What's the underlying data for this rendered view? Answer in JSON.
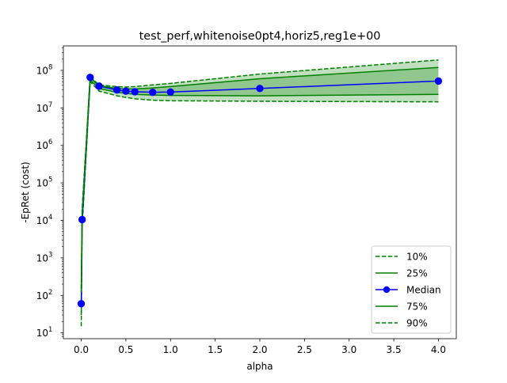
{
  "chart_data": {
    "type": "line",
    "title": "test_perf,whitenoise0pt4,horiz5,reg1e+00",
    "xlabel": "alpha",
    "ylabel": "-EpRet (cost)",
    "yscale": "log",
    "xlim": [
      -0.2,
      4.2
    ],
    "ylim": [
      7,
      450000000
    ],
    "xticks": [
      "0.0",
      "0.5",
      "1.0",
      "1.5",
      "2.0",
      "2.5",
      "3.0",
      "3.5",
      "4.0"
    ],
    "yticks": [
      {
        "base": "10",
        "exp": "1"
      },
      {
        "base": "10",
        "exp": "2"
      },
      {
        "base": "10",
        "exp": "3"
      },
      {
        "base": "10",
        "exp": "4"
      },
      {
        "base": "10",
        "exp": "5"
      },
      {
        "base": "10",
        "exp": "6"
      },
      {
        "base": "10",
        "exp": "7"
      },
      {
        "base": "10",
        "exp": "8"
      }
    ],
    "grid": false,
    "legend_position": "lower-right",
    "x": [
      0,
      0.01,
      0.1,
      0.2,
      0.4,
      0.5,
      0.6,
      0.8,
      1.0,
      2.0,
      4.0
    ],
    "series": [
      {
        "name": "10%",
        "style": "dashed",
        "color": "#008000",
        "values": [
          15,
          6500,
          50000000,
          28000000,
          21000000,
          19000000,
          17500000,
          16000000,
          15500000,
          15000000,
          14500000
        ]
      },
      {
        "name": "25%",
        "style": "solid",
        "color": "#008000",
        "values": [
          30,
          8500,
          55000000,
          33000000,
          26000000,
          24500000,
          23000000,
          22000000,
          21500000,
          21000000,
          23000000
        ]
      },
      {
        "name": "Median",
        "style": "solid-marker",
        "color": "#0000ff",
        "values": [
          60,
          10500,
          65000000,
          38000000,
          30000000,
          28000000,
          27000000,
          26000000,
          26500000,
          33000000,
          52000000
        ]
      },
      {
        "name": "75%",
        "style": "solid",
        "color": "#008000",
        "values": [
          120,
          15000,
          65000000,
          39000000,
          33000000,
          32000000,
          32000000,
          34000000,
          37000000,
          60000000,
          120000000
        ]
      },
      {
        "name": "90%",
        "style": "dashed",
        "color": "#008000",
        "values": [
          150,
          20000,
          68000000,
          41000000,
          37000000,
          36000000,
          37000000,
          41000000,
          45000000,
          80000000,
          190000000
        ]
      }
    ],
    "fills": [
      {
        "between": [
          "10%",
          "90%"
        ],
        "color": "#008000",
        "opacity": 0.25
      },
      {
        "between": [
          "25%",
          "75%"
        ],
        "color": "#008000",
        "opacity": 0.25
      }
    ]
  }
}
